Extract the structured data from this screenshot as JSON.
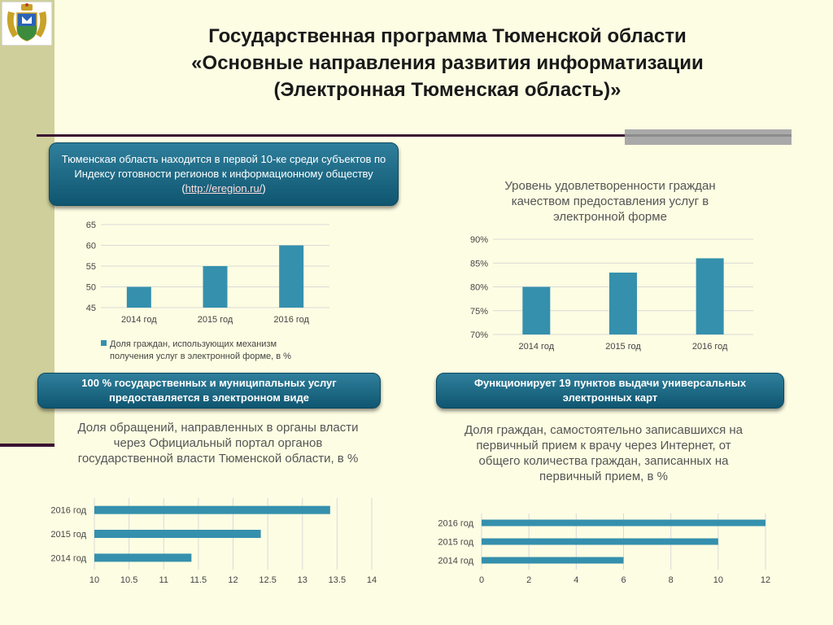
{
  "header": {
    "title_lines": [
      "Государственная программа Тюменской области",
      "«Основные направления развития информатизации",
      "(Электронная Тюменская область)»"
    ]
  },
  "callouts": {
    "top_left": {
      "text_before_link": "Тюменская область находится в первой 10-ке среди субъектов по Индексу готовности регионов к информационному обществу (",
      "link_text": "http://eregion.ru/",
      "text_after_link": ")"
    },
    "mid_left": "100 % государственных и муниципальных услуг предоставляется в электронном виде",
    "mid_right": "Функционирует 19 пунктов выдачи универсальных электронных карт"
  },
  "captions": {
    "chart2": "Уровень удовлетворенности граждан качеством предоставления услуг в электронной форме",
    "chart3": "Доля обращений, направленных в органы власти через Официальный портал органов государственной власти Тюменской области, в %",
    "chart4": "Доля граждан, самостоятельно записавшихся на первичный прием к врачу через Интернет, от общего количества граждан, записанных на первичный прием, в %"
  },
  "colors": {
    "bar": "#3590ad",
    "grid": "#d9d9d9"
  },
  "chart_data": [
    {
      "type": "bar",
      "categories": [
        "2014 год",
        "2015 год",
        "2016 год"
      ],
      "series": [
        {
          "name": "Доля граждан, использующих механизм получения услуг в электронной форме, в %",
          "values": [
            50,
            55,
            60
          ]
        }
      ],
      "yticks": [
        "65",
        "60",
        "55",
        "50",
        "45"
      ],
      "ylim": [
        45,
        65
      ],
      "legend": "bottom-left"
    },
    {
      "type": "bar",
      "categories": [
        "2014 год",
        "2015 год",
        "2016 год"
      ],
      "values": [
        80,
        83,
        86
      ],
      "yticks": [
        "90%",
        "85%",
        "80%",
        "75%",
        "70%"
      ],
      "ylim": [
        70,
        90
      ]
    },
    {
      "type": "bar",
      "orientation": "horizontal",
      "categories": [
        "2016 год",
        "2015 год",
        "2014 год"
      ],
      "values": [
        13.4,
        12.4,
        11.4
      ],
      "xticks": [
        "10",
        "10.5",
        "11",
        "11.5",
        "12",
        "12.5",
        "13",
        "13.5",
        "14"
      ],
      "xlim": [
        10,
        14
      ]
    },
    {
      "type": "bar",
      "orientation": "horizontal",
      "categories": [
        "2016 год",
        "2015 год",
        "2014 год"
      ],
      "values": [
        12,
        10,
        6
      ],
      "xticks": [
        "0",
        "2",
        "4",
        "6",
        "8",
        "10",
        "12"
      ],
      "xlim": [
        0,
        12
      ]
    }
  ]
}
